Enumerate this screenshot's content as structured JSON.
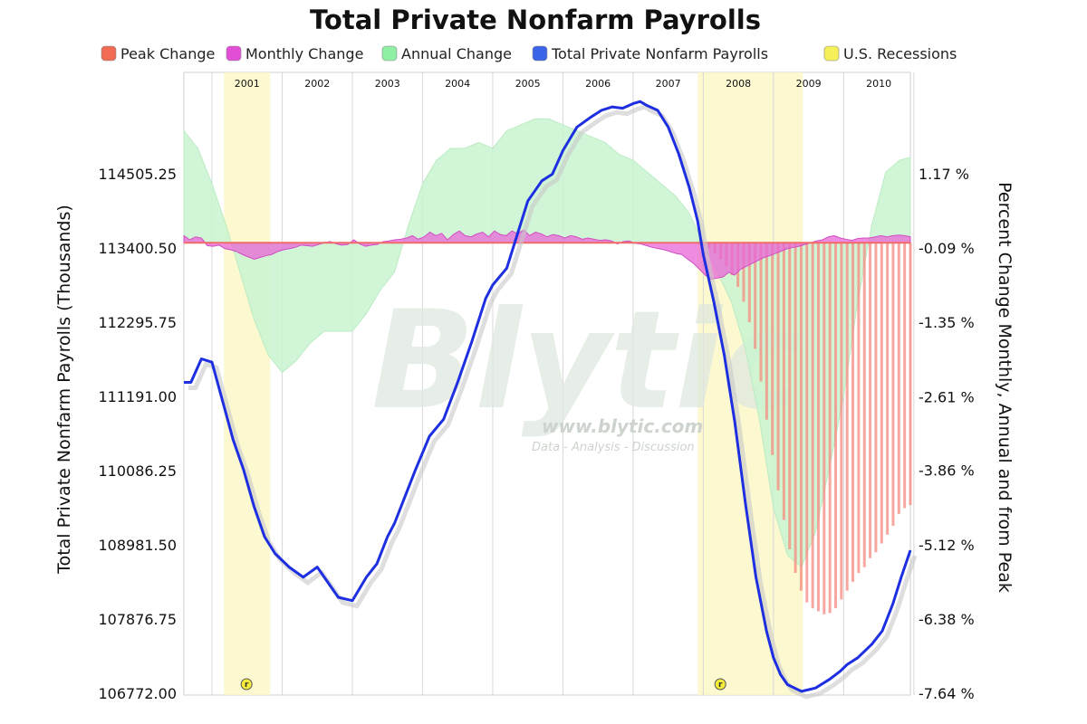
{
  "chart_data": {
    "type": "line",
    "title": "Total Private Nonfarm Payrolls",
    "legend": {
      "placement": "top",
      "items": [
        {
          "label": "Peak Change",
          "color": "#f26b55"
        },
        {
          "label": "Monthly Change",
          "color": "#e24fd6"
        },
        {
          "label": "Annual Change",
          "color": "#8ff0a4"
        },
        {
          "label": "Total Private Nonfarm Payrolls",
          "color": "#3b63e8"
        },
        {
          "label": "U.S. Recessions",
          "color": "#f5f05a"
        }
      ]
    },
    "xaxis": {
      "years": [
        "2001",
        "2002",
        "2003",
        "2004",
        "2005",
        "2006",
        "2007",
        "2008",
        "2009",
        "2010"
      ],
      "range": [
        2000.6,
        2010.95
      ]
    },
    "yaxis_left": {
      "label": "Total Private Nonfarm Payrolls (Thousands)",
      "range": [
        106772.0,
        115610.0
      ],
      "ticks": [
        "114505.25",
        "113400.50",
        "112295.75",
        "111191.00",
        "110086.25",
        "108981.50",
        "107876.75",
        "106772.00"
      ]
    },
    "yaxis_right": {
      "label": "Percent Change Monthly, Annual and from Peak",
      "range": [
        -7.64,
        2.26
      ],
      "ticks": [
        "1.17 %",
        "-0.09 %",
        "-1.35 %",
        "-2.61 %",
        "-3.86 %",
        "-5.12 %",
        "-6.38 %",
        "-7.64 %"
      ]
    },
    "recessions": [
      {
        "start": 2001.17,
        "end": 2001.83,
        "marker": "r"
      },
      {
        "start": 2007.92,
        "end": 2009.42,
        "marker": "r"
      }
    ],
    "series": [
      {
        "name": "Total Private Nonfarm Payrolls",
        "axis": "left",
        "x": [
          2000.6,
          2000.7,
          2000.85,
          2001.0,
          2001.17,
          2001.3,
          2001.45,
          2001.6,
          2001.75,
          2001.9,
          2002.1,
          2002.3,
          2002.5,
          2002.6,
          2002.8,
          2003.0,
          2003.2,
          2003.35,
          2003.5,
          2003.6,
          2003.75,
          2003.9,
          2004.1,
          2004.3,
          2004.5,
          2004.7,
          2004.9,
          2005.0,
          2005.2,
          2005.35,
          2005.5,
          2005.7,
          2005.85,
          2006.0,
          2006.2,
          2006.4,
          2006.55,
          2006.7,
          2006.85,
          2007.0,
          2007.1,
          2007.2,
          2007.35,
          2007.5,
          2007.65,
          2007.8,
          2007.92,
          2008.0,
          2008.15,
          2008.3,
          2008.45,
          2008.6,
          2008.75,
          2008.9,
          2009.0,
          2009.1,
          2009.2,
          2009.4,
          2009.6,
          2009.8,
          2009.95,
          2010.05,
          2010.2,
          2010.4,
          2010.55,
          2010.7,
          2010.82,
          2010.95
        ],
        "y": [
          111400,
          111400,
          111750,
          111700,
          111050,
          110550,
          110100,
          109550,
          109100,
          108850,
          108650,
          108500,
          108650,
          108500,
          108200,
          108150,
          108500,
          108700,
          109100,
          109300,
          109700,
          110100,
          110600,
          110850,
          111400,
          112000,
          112650,
          112850,
          113100,
          113600,
          114100,
          114400,
          114500,
          114850,
          115200,
          115350,
          115450,
          115500,
          115480,
          115550,
          115580,
          115520,
          115450,
          115200,
          114800,
          114300,
          113800,
          113300,
          112600,
          111800,
          110800,
          109600,
          108500,
          107700,
          107300,
          107050,
          106900,
          106800,
          106850,
          106980,
          107100,
          107200,
          107300,
          107500,
          107700,
          108100,
          108500,
          108900
        ]
      },
      {
        "name": "Annual Change",
        "axis": "right",
        "type": "area",
        "x": [
          2000.6,
          2000.8,
          2001.0,
          2001.2,
          2001.4,
          2001.6,
          2001.8,
          2002.0,
          2002.2,
          2002.4,
          2002.6,
          2002.8,
          2003.0,
          2003.2,
          2003.4,
          2003.6,
          2003.8,
          2004.0,
          2004.2,
          2004.4,
          2004.6,
          2004.8,
          2005.0,
          2005.2,
          2005.4,
          2005.6,
          2005.8,
          2006.0,
          2006.2,
          2006.4,
          2006.6,
          2006.8,
          2007.0,
          2007.2,
          2007.4,
          2007.6,
          2007.8,
          2008.0,
          2008.2,
          2008.4,
          2008.6,
          2008.8,
          2009.0,
          2009.2,
          2009.4,
          2009.6,
          2009.8,
          2010.0,
          2010.2,
          2010.4,
          2010.6,
          2010.8,
          2010.95
        ],
        "y": [
          1.9,
          1.6,
          1.0,
          0.3,
          -0.5,
          -1.3,
          -1.9,
          -2.2,
          -2.0,
          -1.7,
          -1.5,
          -1.5,
          -1.5,
          -1.2,
          -0.8,
          -0.5,
          0.3,
          1.0,
          1.4,
          1.6,
          1.6,
          1.7,
          1.6,
          1.9,
          2.0,
          2.1,
          2.1,
          2.0,
          1.9,
          1.8,
          1.7,
          1.5,
          1.4,
          1.2,
          1.0,
          0.8,
          0.5,
          0.0,
          -0.5,
          -1.0,
          -1.8,
          -3.0,
          -4.5,
          -5.3,
          -5.5,
          -4.9,
          -3.8,
          -2.6,
          -1.0,
          0.3,
          1.2,
          1.4,
          1.45
        ]
      }
    ],
    "monthly_change": {
      "x_start": 2000.6,
      "x_end": 2010.95,
      "count": 125,
      "values": [
        0.12,
        0.05,
        0.1,
        0.08,
        -0.05,
        -0.06,
        -0.04,
        -0.1,
        -0.12,
        -0.15,
        -0.2,
        -0.24,
        -0.28,
        -0.25,
        -0.22,
        -0.2,
        -0.15,
        -0.12,
        -0.1,
        -0.08,
        -0.04,
        -0.05,
        -0.06,
        -0.03,
        0.0,
        0.02,
        -0.02,
        -0.04,
        -0.03,
        0.05,
        -0.02,
        -0.06,
        -0.04,
        -0.03,
        0.02,
        0.03,
        0.05,
        0.06,
        0.08,
        0.12,
        0.06,
        0.1,
        0.18,
        0.12,
        0.16,
        0.05,
        0.14,
        0.2,
        0.12,
        0.1,
        0.15,
        0.18,
        0.1,
        0.2,
        0.14,
        0.12,
        0.2,
        0.15,
        0.22,
        0.12,
        0.18,
        0.15,
        0.1,
        0.14,
        0.12,
        0.08,
        0.12,
        0.1,
        0.06,
        0.08,
        0.06,
        0.04,
        0.05,
        0.03,
        -0.02,
        0.02,
        0.03,
        -0.01,
        -0.02,
        -0.05,
        -0.08,
        -0.1,
        -0.12,
        -0.15,
        -0.18,
        -0.2,
        -0.28,
        -0.35,
        -0.45,
        -0.55,
        -0.62,
        -0.6,
        -0.58,
        -0.5,
        -0.55,
        -0.45,
        -0.4,
        -0.35,
        -0.3,
        -0.25,
        -0.22,
        -0.18,
        -0.14,
        -0.1,
        -0.08,
        -0.06,
        -0.03,
        0.0,
        0.03,
        0.05,
        0.1,
        0.12,
        0.08,
        0.06,
        0.04,
        0.07,
        0.08,
        0.08,
        0.1,
        0.12,
        0.1,
        0.12,
        0.13,
        0.12,
        0.1
      ]
    },
    "peak_change": {
      "x_start": 2007.92,
      "x_end": 2010.95,
      "count": 38,
      "values": [
        -0.02,
        -0.05,
        -0.1,
        -0.18,
        -0.28,
        -0.4,
        -0.55,
        -0.75,
        -1.0,
        -1.35,
        -1.8,
        -2.35,
        -3.0,
        -3.6,
        -4.2,
        -4.7,
        -5.2,
        -5.6,
        -5.9,
        -6.1,
        -6.2,
        -6.25,
        -6.3,
        -6.28,
        -6.2,
        -6.05,
        -5.9,
        -5.75,
        -5.6,
        -5.5,
        -5.35,
        -5.25,
        -5.1,
        -4.95,
        -4.8,
        -4.6,
        -4.5,
        -4.45
      ]
    }
  },
  "watermark": {
    "brand": "Blytic",
    "url": "www.blytic.com",
    "tagline": "Data - Analysis - Discussion"
  }
}
